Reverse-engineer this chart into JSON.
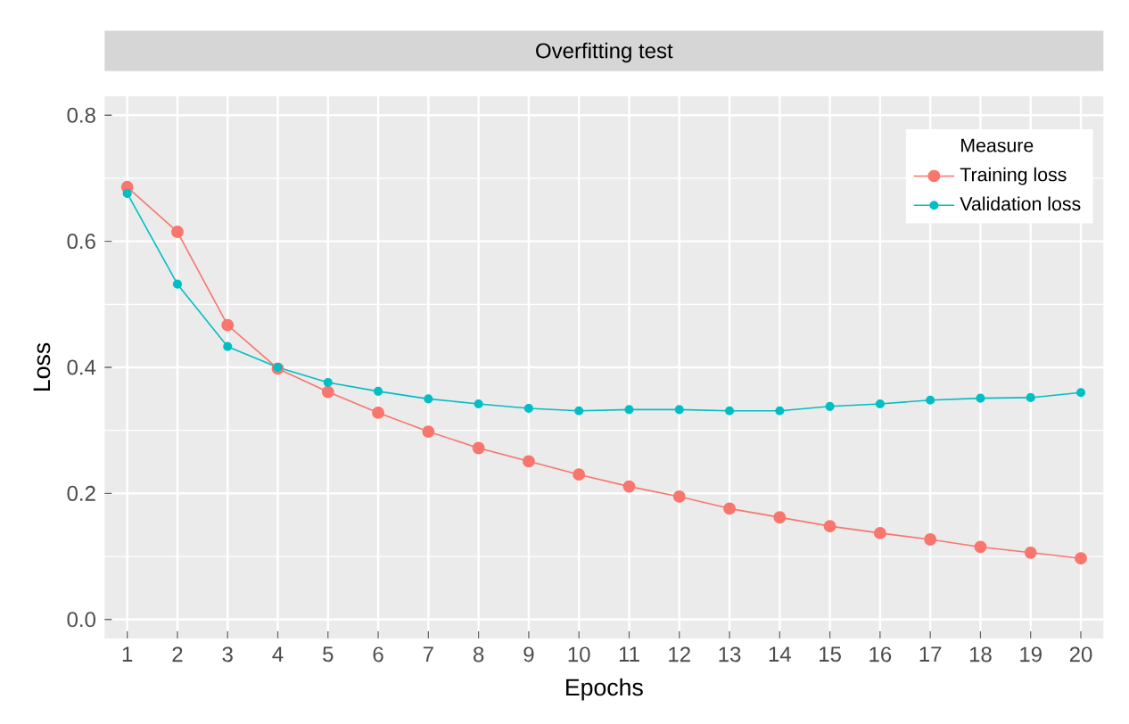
{
  "chart_data": {
    "type": "line",
    "title": "Overfitting test",
    "xlabel": "Epochs",
    "ylabel": "Loss",
    "legend_title": "Measure",
    "x": [
      1,
      2,
      3,
      4,
      5,
      6,
      7,
      8,
      9,
      10,
      11,
      12,
      13,
      14,
      15,
      16,
      17,
      18,
      19,
      20
    ],
    "series": [
      {
        "name": "Training loss",
        "color": "#f8766d",
        "values": [
          0.686,
          0.615,
          0.467,
          0.398,
          0.361,
          0.328,
          0.298,
          0.272,
          0.251,
          0.23,
          0.211,
          0.195,
          0.176,
          0.162,
          0.148,
          0.137,
          0.127,
          0.115,
          0.106,
          0.097
        ]
      },
      {
        "name": "Validation loss",
        "color": "#00bfc4",
        "values": [
          0.676,
          0.532,
          0.433,
          0.4,
          0.376,
          0.362,
          0.35,
          0.342,
          0.335,
          0.331,
          0.333,
          0.333,
          0.331,
          0.331,
          0.338,
          0.342,
          0.348,
          0.351,
          0.352,
          0.36
        ]
      }
    ],
    "xlim": [
      0.55,
      20.45
    ],
    "ylim": [
      -0.03,
      0.83
    ],
    "xticks": [
      1,
      2,
      3,
      4,
      5,
      6,
      7,
      8,
      9,
      10,
      11,
      12,
      13,
      14,
      15,
      16,
      17,
      18,
      19,
      20
    ],
    "yticks": [
      {
        "value": 0,
        "label": "0.0"
      },
      {
        "value": 0.2,
        "label": "0.2"
      },
      {
        "value": 0.4,
        "label": "0.4"
      },
      {
        "value": 0.6,
        "label": "0.6"
      },
      {
        "value": 0.8,
        "label": "0.8"
      }
    ],
    "grid": true,
    "legend": "top right",
    "marker": "circle",
    "line_style": "solid"
  }
}
